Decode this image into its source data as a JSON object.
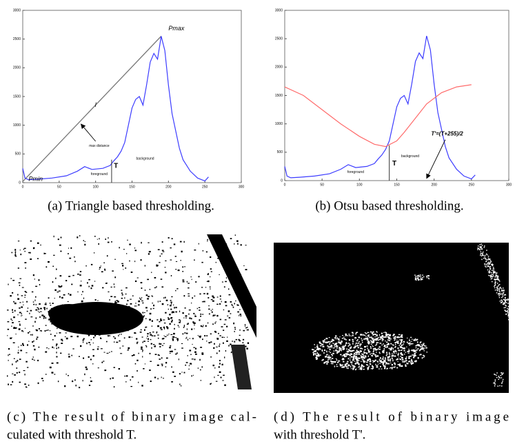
{
  "chart_data": [
    {
      "type": "line",
      "xlim": [
        0,
        300
      ],
      "ylim": [
        0,
        3000
      ],
      "xticks": [
        0,
        50,
        100,
        150,
        200,
        250,
        300
      ],
      "yticks": [
        0,
        500,
        1000,
        1500,
        2000,
        2500,
        3000
      ],
      "series": [
        {
          "color": "#3b3bff",
          "x": [
            0,
            3,
            8,
            20,
            40,
            60,
            75,
            85,
            95,
            110,
            120,
            125,
            130,
            135,
            140,
            145,
            150,
            155,
            160,
            165,
            170,
            175,
            180,
            185,
            190,
            195,
            200,
            205,
            210,
            215,
            220,
            230,
            240,
            250,
            255
          ],
          "values": [
            250,
            80,
            50,
            60,
            80,
            120,
            200,
            280,
            230,
            250,
            300,
            380,
            450,
            550,
            700,
            1000,
            1300,
            1450,
            1500,
            1350,
            1700,
            2100,
            2250,
            2150,
            2550,
            2300,
            1700,
            1200,
            900,
            600,
            400,
            200,
            80,
            30,
            100
          ]
        }
      ],
      "triangle_line": {
        "x": [
          0,
          190
        ],
        "y": [
          20,
          2550
        ]
      },
      "threshold": {
        "x": 122,
        "y": 400
      },
      "annotations": [
        "Pmax",
        "l",
        "max distance",
        "T",
        "foreground",
        "background",
        "Pmin"
      ],
      "caption": "(a) Triangle based thresholding."
    },
    {
      "type": "line",
      "xlim": [
        0,
        300
      ],
      "ylim": [
        0,
        3000
      ],
      "xticks": [
        0,
        50,
        100,
        150,
        200,
        250,
        300
      ],
      "yticks": [
        0,
        500,
        1000,
        1500,
        2000,
        2500,
        3000
      ],
      "series": [
        {
          "color": "#3b3bff",
          "x": [
            0,
            3,
            8,
            20,
            40,
            60,
            75,
            85,
            95,
            110,
            120,
            125,
            130,
            135,
            140,
            145,
            150,
            155,
            160,
            165,
            170,
            175,
            180,
            185,
            190,
            195,
            200,
            205,
            210,
            215,
            220,
            230,
            240,
            250,
            255
          ],
          "values": [
            250,
            80,
            50,
            60,
            80,
            120,
            200,
            280,
            230,
            250,
            300,
            380,
            450,
            550,
            700,
            1000,
            1300,
            1450,
            1500,
            1350,
            1700,
            2100,
            2250,
            2150,
            2550,
            2300,
            1700,
            1200,
            900,
            600,
            400,
            200,
            80,
            30,
            100
          ]
        },
        {
          "color": "#ff6a6a",
          "x": [
            0,
            25,
            50,
            75,
            100,
            120,
            135,
            150,
            160,
            175,
            190,
            210,
            230,
            250
          ],
          "values": [
            1650,
            1500,
            1250,
            1000,
            780,
            640,
            600,
            700,
            850,
            1100,
            1350,
            1550,
            1650,
            1690
          ]
        }
      ],
      "threshold": {
        "x": 140,
        "y": 620
      },
      "annotations": [
        "T",
        "foreground",
        "background",
        "T'=(T+255)/2"
      ],
      "caption": "(b) Otsu based thresholding."
    }
  ],
  "images": [
    {
      "caption": [
        "(c) The result of binary image cal-",
        "culated with threshold T."
      ]
    },
    {
      "caption": [
        "(d) The result of binary image",
        "with threshold T'."
      ]
    }
  ]
}
